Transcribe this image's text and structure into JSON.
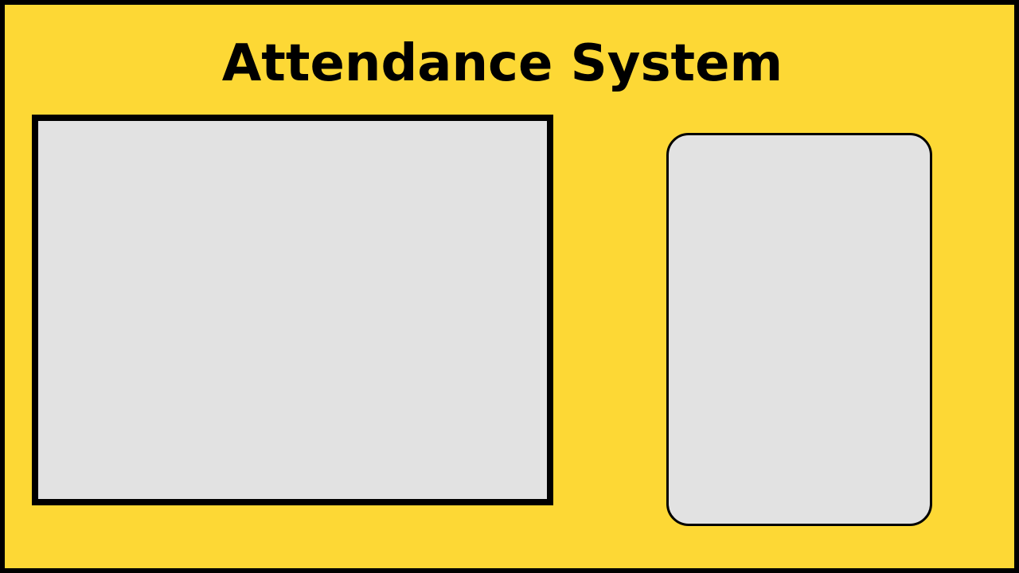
{
  "app": {
    "title": "Attendance System"
  },
  "colors": {
    "background": "#FDD835",
    "panel_fill": "#E2E2E2",
    "border": "#000000",
    "text": "#000000"
  }
}
